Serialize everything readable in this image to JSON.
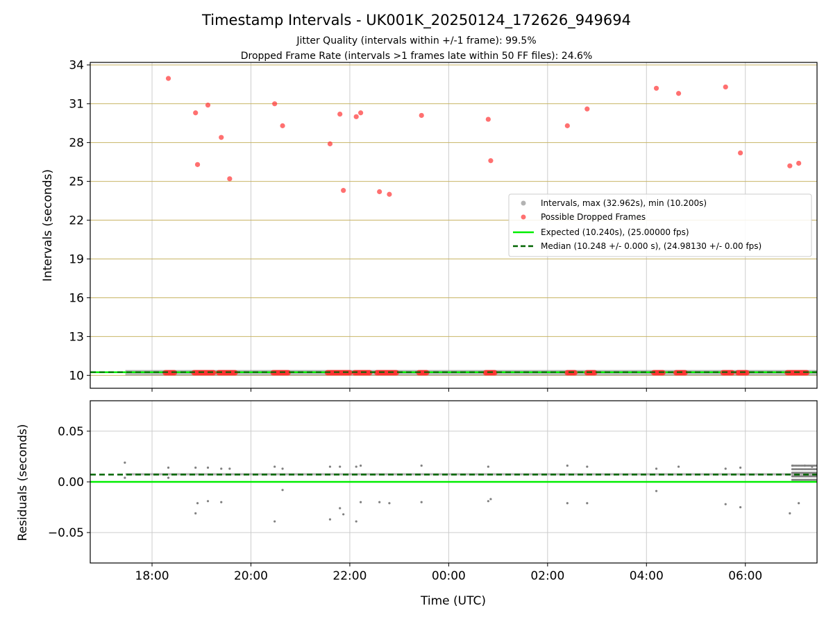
{
  "figure": {
    "title": "Timestamp Intervals - UK001K_20250124_172626_949694",
    "subtitle1": "Jitter Quality (intervals within +/-1 frame): 99.5%",
    "subtitle2": "Dropped Frame Rate (intervals >1 frames late within 50 FF files): 24.6%"
  },
  "colors": {
    "intervals": "#808080",
    "dropped": "#ff3333",
    "expected": "#00ee00",
    "median": "#006400",
    "gold_grid": "#c8b464",
    "grid": "#cccccc"
  },
  "chart_data": [
    {
      "type": "scatter",
      "panel": "top",
      "ylabel": "Intervals (seconds)",
      "xlim": [
        -1.25,
        13.45
      ],
      "ylim": [
        9.0,
        34.2
      ],
      "yticks": [
        10,
        13,
        16,
        19,
        22,
        25,
        28,
        31,
        34
      ],
      "ytick_labels": [
        "10",
        "13",
        "16",
        "19",
        "22",
        "25",
        "28",
        "31",
        "34"
      ],
      "xticks": [
        0,
        2,
        4,
        6,
        8,
        10,
        12
      ],
      "grid": true,
      "legend_position": "center-right",
      "legend": [
        "Intervals, max (32.962s), min (10.200s)",
        "Possible Dropped Frames",
        "Expected (10.240s), (25.00000 fps)",
        "Median (10.248 +/- 0.000 s), (24.98130 +/- 0.00 fps)"
      ],
      "expected": 10.24,
      "median": 10.248,
      "series": [
        {
          "name": "Possible Dropped Frames",
          "points": [
            [
              0.33,
              32.96
            ],
            [
              0.88,
              30.3
            ],
            [
              0.92,
              26.3
            ],
            [
              1.13,
              30.9
            ],
            [
              1.4,
              28.4
            ],
            [
              1.57,
              25.2
            ],
            [
              2.48,
              31.0
            ],
            [
              2.64,
              29.3
            ],
            [
              3.6,
              27.9
            ],
            [
              3.8,
              30.2
            ],
            [
              3.87,
              24.3
            ],
            [
              4.13,
              30.0
            ],
            [
              4.22,
              30.3
            ],
            [
              4.6,
              24.2
            ],
            [
              4.8,
              24.0
            ],
            [
              5.45,
              30.1
            ],
            [
              6.8,
              29.8
            ],
            [
              6.85,
              26.6
            ],
            [
              8.4,
              29.3
            ],
            [
              8.8,
              30.6
            ],
            [
              10.2,
              32.2
            ],
            [
              10.65,
              31.8
            ],
            [
              11.6,
              32.3
            ],
            [
              11.9,
              27.2
            ],
            [
              12.9,
              26.2
            ],
            [
              13.08,
              26.4
            ]
          ],
          "low_clusters": [
            [
              0.27,
              0.45
            ],
            [
              0.85,
              1.25
            ],
            [
              1.35,
              1.7
            ],
            [
              2.45,
              2.75
            ],
            [
              3.55,
              4.0
            ],
            [
              4.1,
              4.4
            ],
            [
              4.55,
              4.95
            ],
            [
              5.4,
              5.55
            ],
            [
              6.75,
              6.95
            ],
            [
              8.4,
              8.55
            ],
            [
              8.8,
              8.95
            ],
            [
              10.15,
              10.35
            ],
            [
              10.6,
              10.8
            ],
            [
              11.55,
              11.75
            ],
            [
              11.85,
              12.05
            ],
            [
              12.85,
              13.25
            ]
          ],
          "low_value": 10.2
        }
      ]
    },
    {
      "type": "scatter",
      "panel": "bottom",
      "ylabel": "Residuals (seconds)",
      "xlabel": "Time (UTC)",
      "xlim": [
        -1.25,
        13.45
      ],
      "ylim": [
        -0.08,
        0.08
      ],
      "yticks": [
        -0.05,
        0.0,
        0.05
      ],
      "ytick_labels": [
        "−0.05",
        "0.00",
        "0.05"
      ],
      "xticks": [
        0,
        2,
        4,
        6,
        8,
        10,
        12
      ],
      "xtick_labels": [
        "18:00",
        "20:00",
        "22:00",
        "00:00",
        "02:00",
        "04:00",
        "06:00"
      ],
      "grid": true,
      "expected": 0.0,
      "median": 0.0072,
      "series": [
        {
          "name": "Residuals",
          "band": [
            -0.54,
            13.45
          ],
          "band_value": 0.0075,
          "outliers": [
            [
              -0.55,
              0.019
            ],
            [
              -0.55,
              0.004
            ],
            [
              0.33,
              0.014
            ],
            [
              0.33,
              0.004
            ],
            [
              0.88,
              -0.031
            ],
            [
              0.92,
              -0.021
            ],
            [
              0.88,
              0.014
            ],
            [
              1.13,
              -0.019
            ],
            [
              1.13,
              0.014
            ],
            [
              1.4,
              -0.02
            ],
            [
              1.4,
              0.013
            ],
            [
              1.57,
              0.013
            ],
            [
              2.48,
              -0.039
            ],
            [
              2.48,
              0.015
            ],
            [
              2.64,
              -0.008
            ],
            [
              2.64,
              0.013
            ],
            [
              3.6,
              -0.037
            ],
            [
              3.6,
              0.015
            ],
            [
              3.8,
              -0.026
            ],
            [
              3.87,
              -0.032
            ],
            [
              3.8,
              0.015
            ],
            [
              4.13,
              -0.039
            ],
            [
              4.13,
              0.015
            ],
            [
              4.22,
              -0.02
            ],
            [
              4.22,
              0.016
            ],
            [
              4.6,
              -0.02
            ],
            [
              4.8,
              -0.021
            ],
            [
              5.45,
              -0.02
            ],
            [
              5.45,
              0.016
            ],
            [
              6.8,
              -0.019
            ],
            [
              6.85,
              -0.017
            ],
            [
              6.8,
              0.015
            ],
            [
              8.4,
              -0.021
            ],
            [
              8.4,
              0.016
            ],
            [
              8.8,
              -0.021
            ],
            [
              8.8,
              0.015
            ],
            [
              10.2,
              -0.009
            ],
            [
              10.2,
              0.013
            ],
            [
              10.65,
              0.015
            ],
            [
              11.6,
              -0.022
            ],
            [
              11.6,
              0.013
            ],
            [
              11.9,
              -0.025
            ],
            [
              11.9,
              0.014
            ],
            [
              12.9,
              -0.031
            ],
            [
              13.08,
              -0.021
            ],
            [
              12.95,
              0.016
            ],
            [
              13.2,
              0.016
            ],
            [
              13.35,
              0.015
            ]
          ]
        }
      ]
    }
  ]
}
